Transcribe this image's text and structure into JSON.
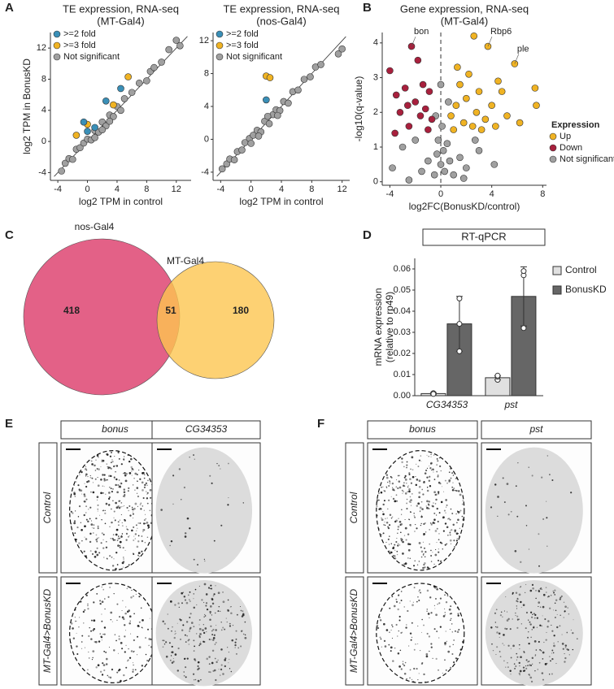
{
  "panel_labels": [
    "A",
    "B",
    "C",
    "D",
    "E",
    "F"
  ],
  "chart_data": [
    {
      "type": "scatter",
      "title": "TE expression, RNA-seq",
      "subtitle": "(MT-Gal4)",
      "x_label": "log2 TPM in control",
      "y_label": "log2 TPM in BonusKD",
      "xlim": [
        -5,
        14
      ],
      "ylim": [
        -5,
        14
      ],
      "xticks": [
        -4,
        0,
        4,
        8,
        12
      ],
      "yticks": [
        -4,
        0,
        4,
        8,
        12
      ],
      "diagonal": true,
      "legend": "top-left",
      "series": [
        {
          "name": ">=2 fold",
          "color": "#3a8fb7",
          "x": [
            -0.5,
            0,
            1,
            2.5,
            4.5
          ],
          "values": [
            2.5,
            1.3,
            1.8,
            5.2,
            6.8
          ]
        },
        {
          "name": ">=3 fold",
          "color": "#f0b323",
          "x": [
            -1.5,
            0,
            3.5,
            5.5
          ],
          "values": [
            0.8,
            2.2,
            4.7,
            8.3
          ]
        },
        {
          "name": "Not significant",
          "color": "#a0a0a0",
          "x": [
            -3.5,
            -3,
            -2.5,
            -2,
            -1.5,
            -1,
            -0.5,
            0,
            0.5,
            1,
            1.5,
            2,
            2.5,
            3,
            3.5,
            4,
            4.5,
            5,
            6,
            7,
            8,
            8.5,
            9,
            10,
            11,
            12,
            12.5,
            2,
            3,
            1
          ],
          "values": [
            -3.8,
            -2.8,
            -2.2,
            -2.3,
            -1,
            -0.8,
            -0.2,
            0.3,
            0.2,
            1.4,
            1.2,
            2.5,
            2,
            3.4,
            3.2,
            4.5,
            4,
            5.5,
            6.3,
            7.5,
            7.8,
            9,
            9.5,
            10.2,
            11.8,
            13,
            12.3,
            1.5,
            2.6,
            0.5
          ]
        }
      ]
    },
    {
      "type": "scatter",
      "title": "TE expression, RNA-seq",
      "subtitle": "(nos-Gal4)",
      "x_label": "log2 TPM in control",
      "xlim": [
        -5,
        13
      ],
      "ylim": [
        -5,
        13
      ],
      "xticks": [
        -4,
        0,
        4,
        8,
        12
      ],
      "yticks": [
        -4,
        0,
        4,
        8,
        12
      ],
      "diagonal": true,
      "legend": "top-left",
      "series": [
        {
          "name": ">=2 fold",
          "color": "#3a8fb7",
          "x": [
            2
          ],
          "values": [
            4.8
          ]
        },
        {
          "name": ">=3 fold",
          "color": "#f0b323",
          "x": [
            2,
            2.5
          ],
          "values": [
            7.7,
            7.5
          ]
        },
        {
          "name": "Not significant",
          "color": "#a0a0a0",
          "x": [
            -3.8,
            -3.2,
            -2.8,
            -2.2,
            -1.8,
            -1.2,
            -0.8,
            -0.2,
            0.3,
            0.8,
            1.3,
            1.8,
            2.4,
            2.9,
            3.3,
            3.8,
            4.3,
            4.9,
            5.5,
            6.2,
            7,
            7.8,
            8.5,
            9.2,
            11.5,
            12,
            1,
            2.2,
            3.5,
            0
          ],
          "values": [
            -3.6,
            -3,
            -2.4,
            -2.5,
            -1.5,
            -1.3,
            -0.4,
            0.1,
            0.5,
            1.1,
            0.9,
            2.2,
            1.9,
            3,
            3.6,
            3.5,
            4.6,
            4.4,
            5.8,
            6,
            7.3,
            7.6,
            8.8,
            9.1,
            10.4,
            11,
            0.4,
            2.8,
            2.9,
            -0.5
          ]
        }
      ]
    },
    {
      "type": "scatter",
      "title": "Gene expression, RNA-seq",
      "subtitle": "(MT-Gal4)",
      "x_label": "log2FC(BonusKD/control)",
      "y_label": "-log10(q-value)",
      "xlim": [
        -4.6,
        8.3
      ],
      "ylim": [
        -0.1,
        4.3
      ],
      "xticks": [
        -4,
        0,
        4,
        8
      ],
      "yticks": [
        0,
        1,
        2,
        3,
        4
      ],
      "zero_line": true,
      "legend": "bottom-right",
      "legend_title": "Expression",
      "annotations": [
        {
          "text": "bon",
          "x": -2.3,
          "y": 3.9
        },
        {
          "text": "Rbp6",
          "x": 3.7,
          "y": 3.9
        },
        {
          "text": "ple",
          "x": 5.8,
          "y": 3.4
        }
      ],
      "series": [
        {
          "name": "Up",
          "color": "#f0b323",
          "x": [
            1,
            1.2,
            1.5,
            1.8,
            2,
            2.2,
            2.5,
            2.8,
            3,
            3.2,
            3.5,
            3.7,
            4,
            4.3,
            4.8,
            5.2,
            5.8,
            6.2,
            7.4,
            7.5,
            1.3,
            0.8,
            2.6,
            4.5
          ],
          "values": [
            1.5,
            2.2,
            2.8,
            1.7,
            2.4,
            3.1,
            1.6,
            2,
            2.6,
            1.5,
            1.8,
            3.9,
            2.2,
            1.6,
            2.6,
            1.9,
            3.4,
            1.7,
            2.7,
            2.2,
            3.3,
            1.9,
            4.2,
            2.9
          ]
        },
        {
          "name": "Down",
          "color": "#a8203d",
          "x": [
            -4,
            -3.5,
            -3.2,
            -2.8,
            -2.5,
            -2.3,
            -2,
            -1.8,
            -1.6,
            -1.4,
            -1.2,
            -1,
            -0.9,
            -0.7,
            -2.6,
            -3.6
          ],
          "values": [
            3.2,
            2.5,
            2,
            2.7,
            1.6,
            3.9,
            2.3,
            3.5,
            1.9,
            2.8,
            2.1,
            1.5,
            2.6,
            1.8,
            2.2,
            1.4
          ]
        },
        {
          "name": "Not significant",
          "color": "#a0a0a0",
          "x": [
            -0.5,
            -0.3,
            -0.2,
            0,
            0.1,
            0.2,
            0.3,
            0.5,
            0.7,
            1,
            1.5,
            2,
            -1,
            -1.5,
            -2,
            -3,
            -3.8,
            3,
            4.2,
            0.6,
            -0.4,
            0,
            1.8,
            -2.5,
            2.7
          ],
          "values": [
            0.2,
            0.8,
            1.2,
            0.5,
            1.6,
            0.9,
            0.3,
            1.1,
            0.6,
            0.2,
            0.7,
            0.4,
            0.6,
            0.3,
            1.2,
            1,
            0.4,
            0.9,
            0.5,
            2.3,
            1.9,
            2.8,
            0.1,
            0.05,
            1.2
          ]
        }
      ]
    },
    {
      "type": "venn",
      "sets": [
        "nos-Gal4",
        "MT-Gal4"
      ],
      "values": [
        418,
        51,
        180
      ]
    },
    {
      "type": "bar",
      "title": "RT-qPCR",
      "y_label": "mRNA expression",
      "y_label_2": "(relative to rp49)",
      "categories": [
        "CG34353",
        "pst"
      ],
      "ylim": [
        0,
        0.065
      ],
      "yticks": [
        {
          "value": 0,
          "label": "0.00"
        },
        {
          "value": 0.01,
          "label": "0.01"
        },
        {
          "value": 0.02,
          "label": "0.02"
        },
        {
          "value": 0.03,
          "label": "0.03"
        },
        {
          "value": 0.04,
          "label": "0.04"
        },
        {
          "value": 0.05,
          "label": "0.05"
        },
        {
          "value": 0.06,
          "label": "0.06"
        }
      ],
      "series": [
        {
          "name": "Control",
          "color": "#e0e0e0",
          "values": [
            0.001,
            0.0085
          ],
          "errors": [
            0.0005,
            0.001
          ],
          "points": [
            [
              0.001,
              0.0012,
              0.0008
            ],
            [
              0.0075,
              0.009,
              0.0095
            ]
          ]
        },
        {
          "name": "BonusKD",
          "color": "#666666",
          "values": [
            0.034,
            0.047
          ],
          "errors": [
            0.013,
            0.014
          ],
          "points": [
            [
              0.021,
              0.046,
              0.034
            ],
            [
              0.032,
              0.057,
              0.059
            ]
          ]
        }
      ]
    }
  ],
  "images": [
    {
      "columns": [
        "bonus",
        "CG34353"
      ],
      "rows": [
        "Control",
        "MT-Gal4>BonusKD"
      ]
    },
    {
      "columns": [
        "bonus",
        "pst"
      ],
      "rows": [
        "Control",
        "MT-Gal4>BonusKD"
      ]
    }
  ]
}
